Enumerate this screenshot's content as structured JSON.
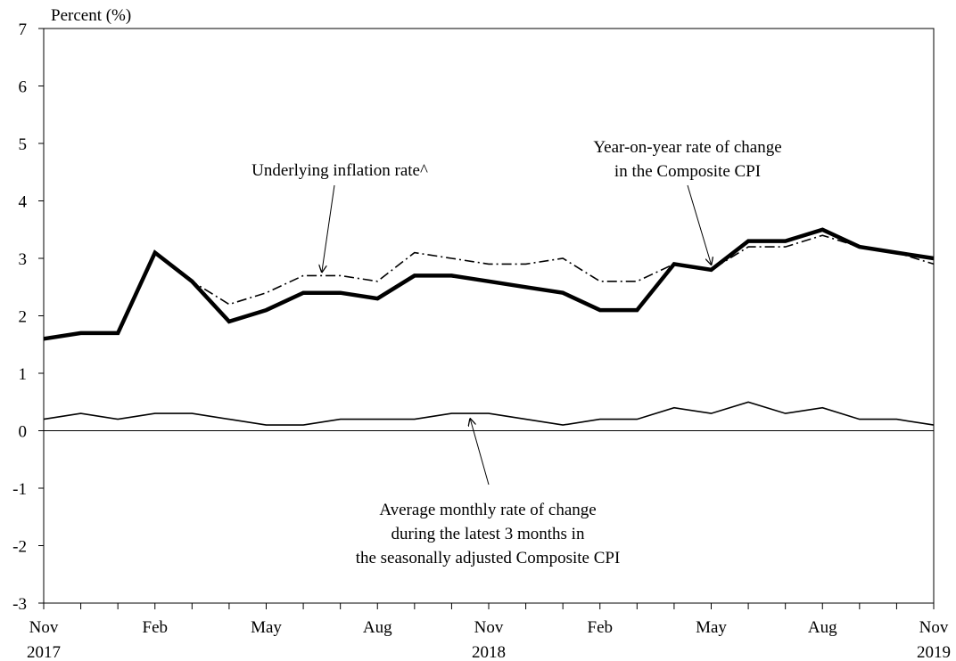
{
  "chart_data": {
    "type": "line",
    "ylabel": "Percent (%)",
    "ylim": [
      -3,
      7
    ],
    "yticks": [
      "7",
      "6",
      "5",
      "4",
      "3",
      "2",
      "1",
      "0",
      "-1",
      "-2",
      "-3"
    ],
    "x_tick_labels": [
      {
        "label": "Nov",
        "year": "2017",
        "index": 0
      },
      {
        "label": "Feb",
        "year": "",
        "index": 3
      },
      {
        "label": "May",
        "year": "",
        "index": 6
      },
      {
        "label": "Aug",
        "year": "",
        "index": 9
      },
      {
        "label": "Nov",
        "year": "2018",
        "index": 12
      },
      {
        "label": "Feb",
        "year": "",
        "index": 15
      },
      {
        "label": "May",
        "year": "",
        "index": 18
      },
      {
        "label": "Aug",
        "year": "",
        "index": 21
      },
      {
        "label": "Nov",
        "year": "2019",
        "index": 24
      }
    ],
    "x": [
      "2017-11",
      "2017-12",
      "2018-01",
      "2018-02",
      "2018-03",
      "2018-04",
      "2018-05",
      "2018-06",
      "2018-07",
      "2018-08",
      "2018-09",
      "2018-10",
      "2018-11",
      "2018-12",
      "2019-01",
      "2019-02",
      "2019-03",
      "2019-04",
      "2019-05",
      "2019-06",
      "2019-07",
      "2019-08",
      "2019-09",
      "2019-10",
      "2019-11"
    ],
    "series": [
      {
        "id": "composite",
        "style": "thick-solid",
        "values": [
          1.6,
          1.7,
          1.7,
          3.1,
          2.6,
          1.9,
          2.1,
          2.4,
          2.4,
          2.3,
          2.7,
          2.7,
          2.6,
          2.5,
          2.4,
          2.1,
          2.1,
          2.9,
          2.8,
          3.3,
          3.3,
          3.5,
          3.2,
          3.1,
          3.0
        ]
      },
      {
        "id": "underlying",
        "style": "dash-dot",
        "values": [
          1.6,
          1.7,
          1.7,
          3.1,
          2.6,
          2.2,
          2.4,
          2.7,
          2.7,
          2.6,
          3.1,
          3.0,
          2.9,
          2.9,
          3.0,
          2.6,
          2.6,
          2.9,
          2.8,
          3.2,
          3.2,
          3.4,
          3.2,
          3.1,
          2.9
        ]
      },
      {
        "id": "monthly_avg",
        "style": "thin-solid",
        "values": [
          0.2,
          0.3,
          0.2,
          0.3,
          0.3,
          0.2,
          0.1,
          0.1,
          0.2,
          0.2,
          0.2,
          0.3,
          0.3,
          0.2,
          0.1,
          0.2,
          0.2,
          0.4,
          0.3,
          0.5,
          0.3,
          0.4,
          0.2,
          0.2,
          0.1
        ]
      }
    ],
    "annotations": [
      {
        "id": "underlying",
        "lines": [
          "Underlying inflation rate^"
        ],
        "arrow_to_index": 7.5
      },
      {
        "id": "composite",
        "lines": [
          "Year-on-year rate of change",
          "in the Composite CPI"
        ],
        "arrow_to_index": 18
      },
      {
        "id": "monthly_avg",
        "lines": [
          "Average monthly rate of change",
          "during the latest 3 months in",
          "the seasonally adjusted Composite CPI"
        ],
        "arrow_to_index": 11.5
      }
    ],
    "zero_line": true,
    "grid": false
  }
}
